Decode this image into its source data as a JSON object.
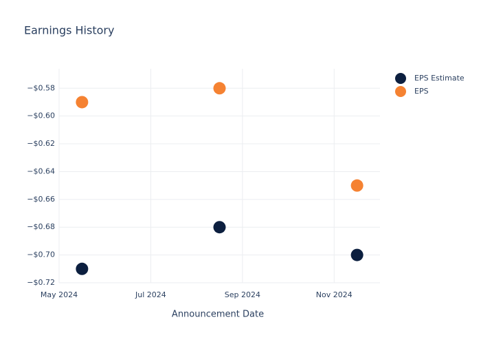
{
  "chart_data": {
    "type": "scatter",
    "title": "Earnings History",
    "xlabel": "Announcement Date",
    "x": [
      "2024-05",
      "2024-08",
      "2024-11"
    ],
    "series": [
      {
        "name": "EPS Estimate",
        "color": "#0c1f3f",
        "values": [
          -0.71,
          -0.68,
          -0.7
        ]
      },
      {
        "name": "EPS",
        "color": "#f58232",
        "values": [
          -0.59,
          -0.58,
          -0.65
        ]
      }
    ],
    "xlim": [
      "2024-05",
      "2024-12"
    ],
    "xticks": [
      {
        "value": "2024-05",
        "label": "May 2024"
      },
      {
        "value": "2024-07",
        "label": "Jul 2024"
      },
      {
        "value": "2024-09",
        "label": "Sep 2024"
      },
      {
        "value": "2024-11",
        "label": "Nov 2024"
      }
    ],
    "ylim": [
      -0.72,
      -0.566
    ],
    "yticks": [
      {
        "value": -0.58,
        "label": "−$0.58"
      },
      {
        "value": -0.6,
        "label": "−$0.60"
      },
      {
        "value": -0.62,
        "label": "−$0.62"
      },
      {
        "value": -0.64,
        "label": "−$0.64"
      },
      {
        "value": -0.66,
        "label": "−$0.66"
      },
      {
        "value": -0.68,
        "label": "−$0.68"
      },
      {
        "value": -0.7,
        "label": "−$0.70"
      },
      {
        "value": -0.72,
        "label": "−$0.72"
      }
    ],
    "grid": true,
    "legend": "top-right"
  }
}
